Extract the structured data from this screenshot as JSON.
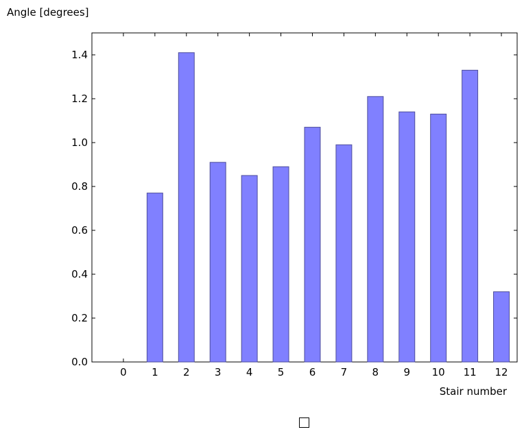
{
  "chart_data": {
    "type": "bar",
    "title": "",
    "ylabel": "Angle [degrees]",
    "xlabel": "Stair number",
    "categories": [
      "0",
      "1",
      "2",
      "3",
      "4",
      "5",
      "6",
      "7",
      "8",
      "9",
      "10",
      "11",
      "12"
    ],
    "values": [
      0.0,
      0.77,
      1.41,
      0.91,
      0.85,
      0.89,
      1.07,
      0.99,
      1.21,
      1.14,
      1.13,
      1.33,
      0.32
    ],
    "ylim": [
      0,
      1.5
    ],
    "xlim": [
      -1,
      12.5
    ],
    "yticks": [
      "0.0",
      "0.2",
      "0.4",
      "0.6",
      "0.8",
      "1.0",
      "1.2",
      "1.4"
    ],
    "grid": false,
    "legend": "bottom-center",
    "bar_color": "#8080ff",
    "bar_edge_color": "#4d4d99"
  }
}
